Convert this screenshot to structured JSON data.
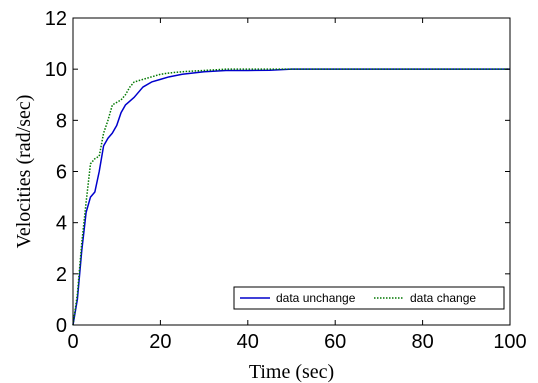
{
  "chart_data": {
    "type": "line",
    "title": "",
    "xlabel": "Time (sec)",
    "ylabel": "Velocities (rad/sec)",
    "xlim": [
      0,
      100
    ],
    "ylim": [
      0,
      12
    ],
    "xticks": [
      0,
      20,
      40,
      60,
      80,
      100
    ],
    "yticks": [
      0,
      2,
      4,
      6,
      8,
      10,
      12
    ],
    "grid": false,
    "legend_position": "bottom-right",
    "series": [
      {
        "name": "data unchange",
        "color": "#0000cc",
        "style": "solid",
        "x": [
          0,
          1,
          2,
          3,
          4,
          5,
          6,
          7,
          8,
          9,
          10,
          11,
          12,
          14,
          16,
          18,
          20,
          22,
          25,
          30,
          35,
          40,
          45,
          50,
          60,
          70,
          80,
          90,
          100
        ],
        "y": [
          0,
          1.0,
          2.9,
          4.4,
          5.0,
          5.2,
          6.0,
          7.0,
          7.3,
          7.5,
          7.8,
          8.3,
          8.6,
          8.9,
          9.3,
          9.5,
          9.6,
          9.7,
          9.8,
          9.9,
          9.95,
          9.95,
          9.96,
          10.0,
          10.0,
          10.0,
          10.0,
          10.0,
          10.0
        ]
      },
      {
        "name": "data change",
        "color": "#007700",
        "style": "dotted",
        "x": [
          0,
          1,
          2,
          3,
          4,
          5,
          6,
          7,
          8,
          9,
          10,
          11,
          12,
          13,
          14,
          16,
          18,
          20,
          22,
          25,
          30,
          35,
          40,
          45,
          50,
          60,
          70,
          80,
          90,
          100
        ],
        "y": [
          0,
          1.2,
          3.2,
          4.8,
          6.3,
          6.5,
          6.6,
          7.5,
          8.0,
          8.6,
          8.7,
          8.8,
          9.0,
          9.3,
          9.5,
          9.6,
          9.7,
          9.8,
          9.85,
          9.9,
          9.95,
          10.0,
          10.0,
          10.0,
          10.0,
          10.0,
          10.0,
          10.0,
          10.0,
          10.0
        ]
      }
    ]
  }
}
